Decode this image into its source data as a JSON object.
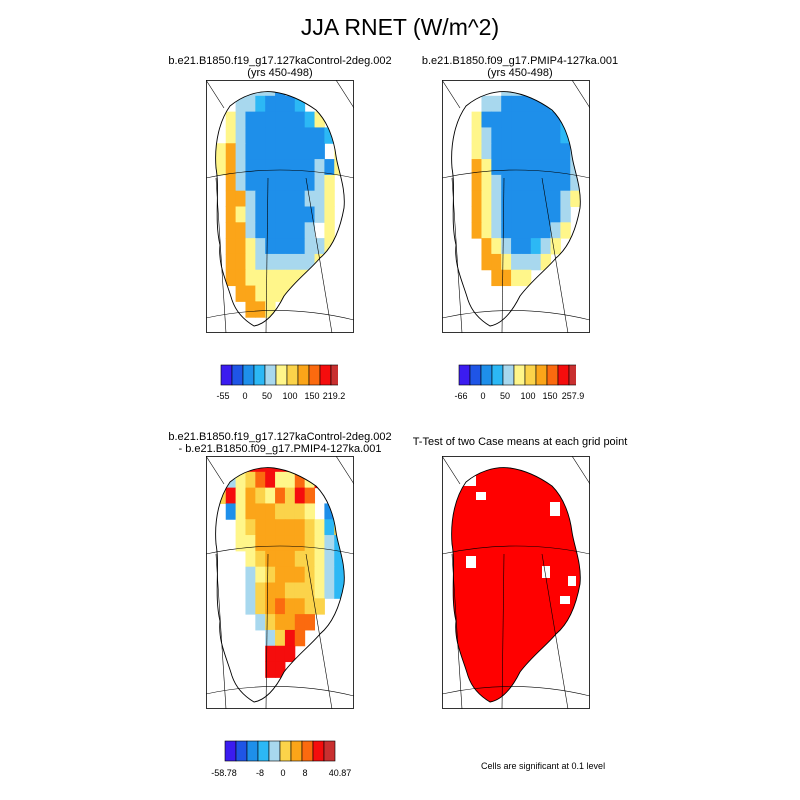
{
  "title": "JJA RNET (W/m^2)",
  "colors": {
    "scale": [
      "#3b1cf0",
      "#1f55e6",
      "#1e8fea",
      "#2cb8f5",
      "#a8d8ee",
      "#fff68a",
      "#fbd34a",
      "#fba519",
      "#fb6a0f",
      "#f50d0d",
      "#c93030"
    ],
    "significant": "#ff0000",
    "coast": "#000000"
  },
  "chart_data": [
    {
      "type": "heatmap",
      "title": "b.e21.B1850.f19_g17.127kaControl-2deg.002",
      "subtitle": "(yrs 450-498)",
      "colorbar_ticks": [
        "-55",
        "0",
        "50",
        "100",
        "150",
        "219.2"
      ]
    },
    {
      "type": "heatmap",
      "title": "b.e21.B1850.f09_g17.PMIP4-127ka.001",
      "subtitle": "(yrs 450-498)",
      "colorbar_ticks": [
        "-66",
        "0",
        "50",
        "100",
        "150",
        "257.9"
      ]
    },
    {
      "type": "heatmap",
      "title": "b.e21.B1850.f19_g17.127kaControl-2deg.002",
      "subtitle": "- b.e21.B1850.f09_g17.PMIP4-127ka.001",
      "colorbar_ticks": [
        "-58.78",
        "-8",
        "0",
        "8",
        "40.87"
      ]
    },
    {
      "type": "heatmap",
      "title": "T-Test of two Case means at each grid point",
      "subtitle": "",
      "note": "Cells are significant at 0.1 level"
    }
  ]
}
